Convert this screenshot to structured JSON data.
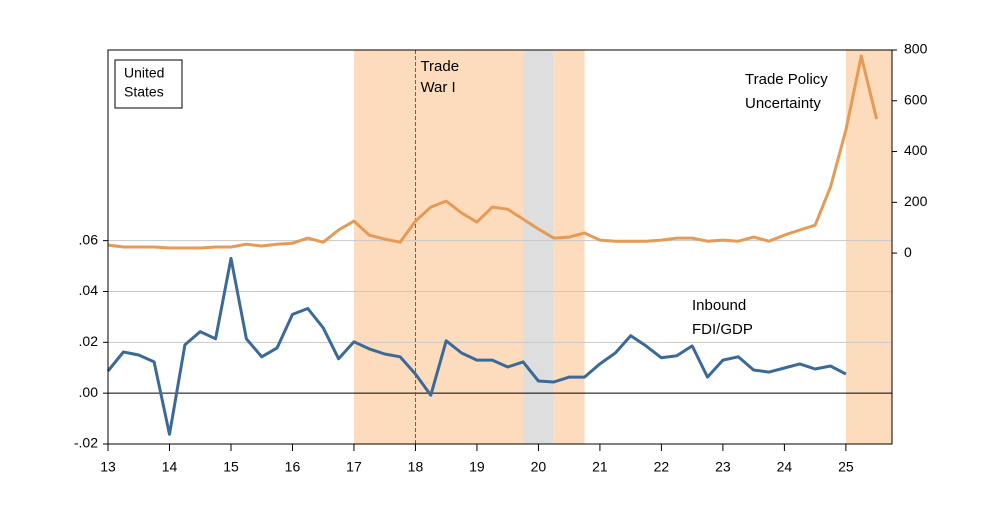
{
  "chart_data": {
    "type": "line",
    "xlim": [
      13,
      25.75
    ],
    "xticks": [
      13,
      14,
      15,
      16,
      17,
      18,
      19,
      20,
      21,
      22,
      23,
      24,
      25
    ],
    "ylim": [
      -0.02,
      0.135
    ],
    "yticks": [
      {
        "value": -0.02,
        "label": "-.02"
      },
      {
        "value": 0,
        "label": ".00"
      },
      {
        "value": 0.02,
        "label": ".02"
      },
      {
        "value": 0.04,
        "label": ".04"
      },
      {
        "value": 0.06,
        "label": ".06"
      }
    ],
    "y2lim": [
      -752,
      800
    ],
    "y2ticks": [
      0,
      200,
      400,
      600,
      800
    ],
    "grid": true,
    "shaded_regions": [
      {
        "start": 17,
        "end": 19.75,
        "color": "#fddcbd"
      },
      {
        "start": 19.75,
        "end": 20.25,
        "color": "#dedede"
      },
      {
        "start": 20.25,
        "end": 20.75,
        "color": "#fddcbd"
      },
      {
        "start": 25,
        "end": 25.75,
        "color": "#fddcbd"
      }
    ],
    "vline": {
      "x": 18,
      "color": "#c0392b",
      "label_lines": [
        "Trade",
        "War I"
      ]
    },
    "box_label_lines": [
      "United",
      "States"
    ],
    "series": [
      {
        "name_lines": [
          "Inbound",
          "FDI/GDP"
        ],
        "color": "#3b6a98",
        "x": [
          13,
          13.25,
          13.5,
          13.75,
          14,
          14.25,
          14.5,
          14.75,
          15,
          15.25,
          15.5,
          15.75,
          16,
          16.25,
          16.5,
          16.75,
          17,
          17.25,
          17.5,
          17.75,
          18,
          18.25,
          18.5,
          18.75,
          19,
          19.25,
          19.5,
          19.75,
          20,
          20.25,
          20.5,
          20.75,
          21,
          21.25,
          21.5,
          21.75,
          22,
          22.25,
          22.5,
          22.75,
          23,
          23.25,
          23.5,
          23.75,
          24,
          24.25,
          24.5,
          24.75,
          25
        ],
        "values": [
          0.0087,
          0.0162,
          0.015,
          0.0123,
          -0.0162,
          0.019,
          0.0242,
          0.0214,
          0.053,
          0.0214,
          0.0143,
          0.0178,
          0.031,
          0.0333,
          0.0257,
          0.0135,
          0.0202,
          0.0174,
          0.0154,
          0.0143,
          0.0075,
          -0.0008,
          0.0206,
          0.0158,
          0.013,
          0.013,
          0.0103,
          0.0123,
          0.0048,
          0.0044,
          0.0063,
          0.0063,
          0.0115,
          0.0158,
          0.0226,
          0.0186,
          0.0139,
          0.0147,
          0.0186,
          0.0063,
          0.013,
          0.0143,
          0.0091,
          0.0083,
          0.0099,
          0.0115,
          0.0095,
          0.0107,
          0.0075
        ]
      },
      {
        "name_lines": [
          "Trade Policy",
          "Uncertainty"
        ],
        "color": "#e59a55",
        "axis": "y2",
        "x": [
          13,
          13.25,
          13.5,
          13.75,
          14,
          14.25,
          14.5,
          14.75,
          15,
          15.25,
          15.5,
          15.75,
          16,
          16.25,
          16.5,
          16.75,
          17,
          17.25,
          17.5,
          17.75,
          18,
          18.25,
          18.5,
          18.75,
          19,
          19.25,
          19.5,
          19.75,
          20,
          20.25,
          20.5,
          20.75,
          21,
          21.25,
          21.5,
          21.75,
          22,
          22.25,
          22.5,
          22.75,
          23,
          23.25,
          23.5,
          23.75,
          24,
          24.25,
          24.5,
          24.75,
          25,
          25.25,
          25.5
        ],
        "values": [
          32,
          24,
          24,
          24,
          20,
          20,
          20,
          24,
          24,
          35,
          28,
          35,
          39,
          59,
          43,
          91,
          126,
          71,
          55,
          43,
          126,
          181,
          205,
          158,
          122,
          181,
          173,
          134,
          95,
          59,
          63,
          79,
          51,
          47,
          47,
          47,
          51,
          59,
          59,
          47,
          51,
          47,
          63,
          47,
          71,
          91,
          110,
          260,
          485,
          776,
          528
        ]
      }
    ]
  }
}
